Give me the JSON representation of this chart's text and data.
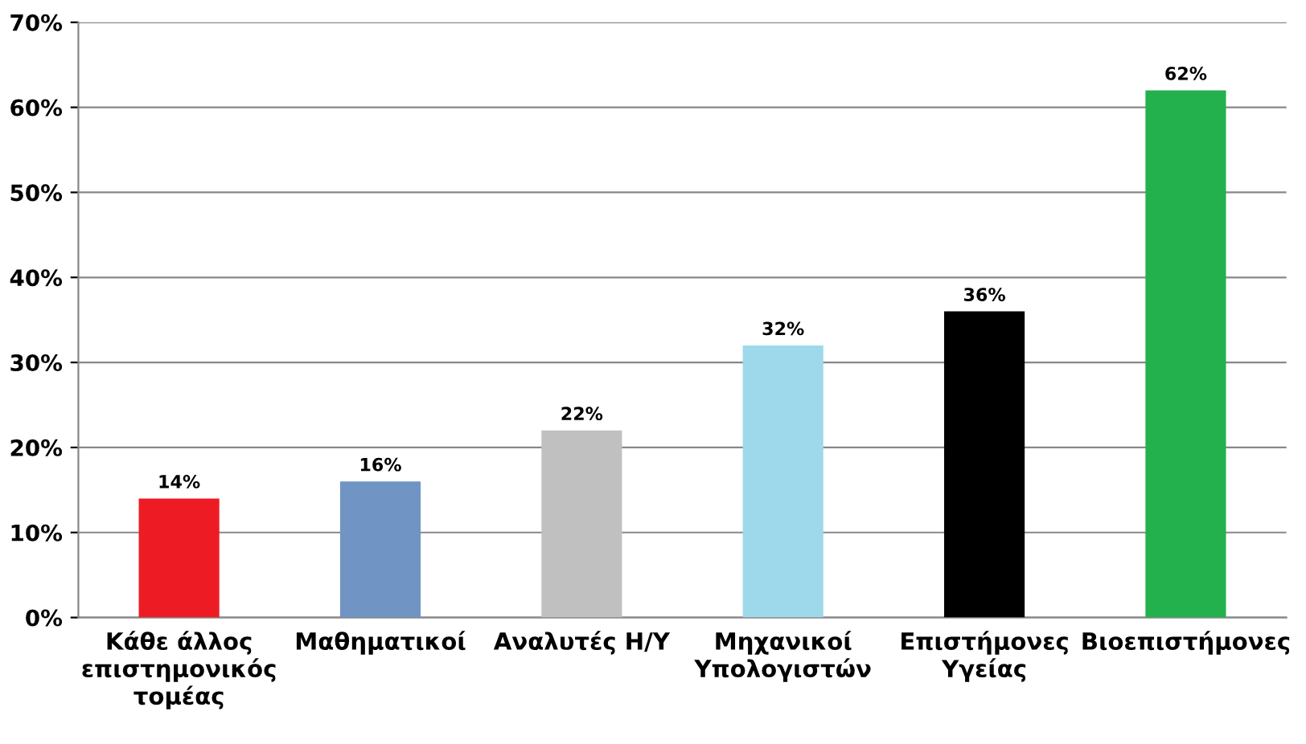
{
  "chart_data": {
    "type": "bar",
    "categories": [
      "Κάθε άλλος\nεπιστημονικός\nτομέας",
      "Μαθηματικοί",
      "Αναλυτές Η/Υ",
      "Μηχανικοί\nΥπολογιστών",
      "Επιστήμονες\nΥγείας",
      "Βιοεπιστήμονες"
    ],
    "values": [
      14,
      16,
      22,
      32,
      36,
      62
    ],
    "colors": [
      "#ed1c24",
      "#7094c4",
      "#c0c0c0",
      "#9dd9ea",
      "#000000",
      "#22b14c"
    ],
    "value_labels": [
      "14%",
      "16%",
      "22%",
      "32%",
      "36%",
      "62%"
    ],
    "ylim": [
      0,
      70
    ],
    "yticks": [
      {
        "value": 0,
        "label": "0%"
      },
      {
        "value": 10,
        "label": "10%"
      },
      {
        "value": 20,
        "label": "20%"
      },
      {
        "value": 30,
        "label": "30%"
      },
      {
        "value": 40,
        "label": "40%"
      },
      {
        "value": 50,
        "label": "50%"
      },
      {
        "value": 60,
        "label": "60%"
      },
      {
        "value": 70,
        "label": "70%"
      }
    ],
    "grid": "y"
  }
}
